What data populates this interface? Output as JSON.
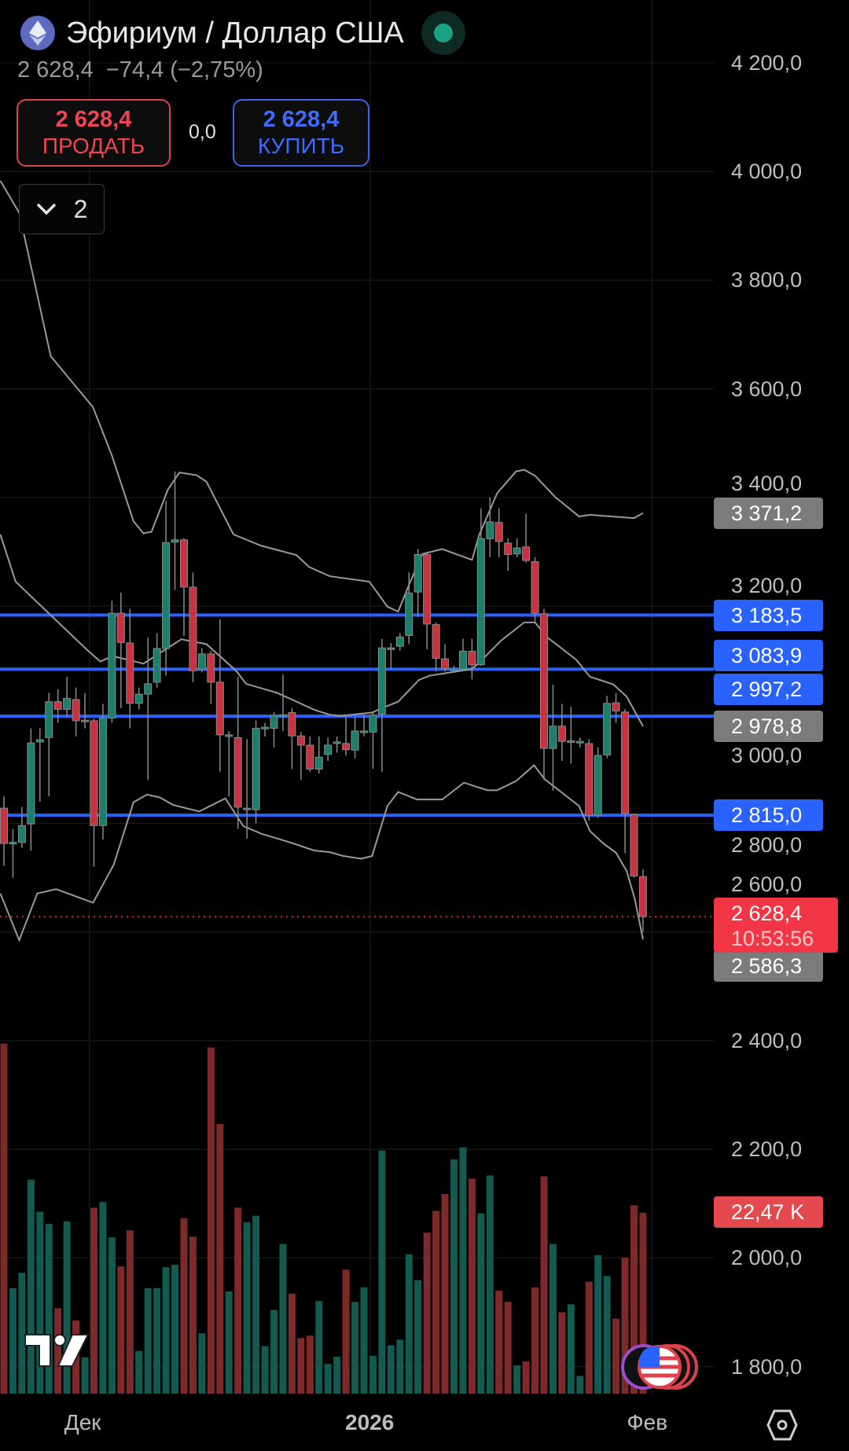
{
  "header": {
    "title": "Эфириум / Доллар США",
    "quote": "2 628,4  −74,4 (−2,75%)",
    "sell": {
      "price": "2 628,4",
      "label": "ПРОДАТЬ"
    },
    "buy": {
      "price": "2 628,4",
      "label": "КУПИТЬ"
    },
    "spread": "0,0",
    "indicators_toggle": {
      "count": "2"
    }
  },
  "colors": {
    "up": "#1b7f6c",
    "down": "#c9323f",
    "vol_up": "#135a50",
    "vol_down": "#7e2a2b",
    "hline": "#2962ff",
    "band": "#9a9a9a",
    "sell": "#f23645",
    "buy": "#2962ff"
  },
  "chart_data": {
    "type": "candlestick",
    "title": "Эфириум / Доллар США",
    "ylim": [
      1800,
      4200
    ],
    "price_axis": [
      "4 200,0",
      "4 000,0",
      "3 800,0",
      "3 600,0",
      "3 400,0",
      "3 200,0",
      "3 000,0",
      "2 800,0",
      "2 600,0",
      "2 400,0",
      "2 200,0",
      "2 000,0",
      "1 800,0"
    ],
    "price_axis_values": [
      4200,
      4000,
      3800,
      3600,
      3400,
      3200,
      3000,
      2800,
      2600,
      2400,
      2200,
      2000,
      1800
    ],
    "time_axis": [
      {
        "label": "Дек",
        "index": 9.5,
        "bold": false
      },
      {
        "label": "2026",
        "index": 40.7,
        "bold": true
      },
      {
        "label": "Фев",
        "index": 72,
        "bold": false
      }
    ],
    "ohlc": [
      [
        2828,
        2850,
        2722,
        2763
      ],
      [
        2765,
        2790,
        2700,
        2765
      ],
      [
        2765,
        2830,
        2755,
        2796
      ],
      [
        2799,
        2975,
        2750,
        2948
      ],
      [
        2950,
        2975,
        2840,
        2954
      ],
      [
        2958,
        3040,
        2850,
        3024
      ],
      [
        3024,
        3047,
        2985,
        3010
      ],
      [
        3010,
        3070,
        2995,
        3030
      ],
      [
        3028,
        3050,
        2960,
        2989
      ],
      [
        2990,
        3040,
        2975,
        2990
      ],
      [
        2989,
        2993,
        2720,
        2796
      ],
      [
        2796,
        3020,
        2770,
        2994
      ],
      [
        2994,
        3210,
        2985,
        3187
      ],
      [
        3187,
        3225,
        3012,
        3133
      ],
      [
        3132,
        3195,
        2975,
        3021
      ],
      [
        3021,
        3050,
        3010,
        3038
      ],
      [
        3038,
        3142,
        2880,
        3057
      ],
      [
        3060,
        3150,
        3050,
        3122
      ],
      [
        3122,
        3394,
        3072,
        3317
      ],
      [
        3318,
        3448,
        3230,
        3322
      ],
      [
        3322,
        3325,
        3145,
        3235
      ],
      [
        3235,
        3262,
        3060,
        3081
      ],
      [
        3083,
        3122,
        3078,
        3112
      ],
      [
        3112,
        3118,
        3020,
        3060
      ],
      [
        3060,
        3176,
        2895,
        2963
      ],
      [
        2963,
        2970,
        2850,
        2963
      ],
      [
        2958,
        3070,
        2790,
        2830
      ],
      [
        2826,
        2955,
        2772,
        2828
      ],
      [
        2825,
        2990,
        2800,
        2975
      ],
      [
        2975,
        2985,
        2960,
        2977
      ],
      [
        2975,
        3005,
        2940,
        2999
      ],
      [
        3000,
        3074,
        2970,
        3000
      ],
      [
        3004,
        3012,
        2900,
        2961
      ],
      [
        2961,
        2968,
        2880,
        2944
      ],
      [
        2944,
        2960,
        2895,
        2900
      ],
      [
        2900,
        2960,
        2892,
        2922
      ],
      [
        2927,
        2958,
        2915,
        2944
      ],
      [
        2950,
        2960,
        2930,
        2950
      ],
      [
        2947,
        2995,
        2925,
        2936
      ],
      [
        2935,
        2995,
        2920,
        2970
      ],
      [
        2970,
        3000,
        2960,
        2970
      ],
      [
        2968,
        3005,
        2900,
        2999
      ],
      [
        3001,
        3140,
        2895,
        3123
      ],
      [
        3122,
        3132,
        3085,
        3123
      ],
      [
        3126,
        3150,
        3118,
        3143
      ],
      [
        3146,
        3262,
        3130,
        3224
      ],
      [
        3226,
        3305,
        3180,
        3295
      ],
      [
        3295,
        3300,
        3120,
        3167
      ],
      [
        3166,
        3170,
        3080,
        3104
      ],
      [
        3103,
        3130,
        3080,
        3085
      ],
      [
        3084,
        3090,
        3080,
        3084
      ],
      [
        3084,
        3140,
        3080,
        3117
      ],
      [
        3117,
        3140,
        3065,
        3092
      ],
      [
        3092,
        3380,
        3090,
        3324
      ],
      [
        3324,
        3400,
        3290,
        3355
      ],
      [
        3354,
        3380,
        3290,
        3319
      ],
      [
        3316,
        3325,
        3265,
        3295
      ],
      [
        3296,
        3325,
        3290,
        3307
      ],
      [
        3309,
        3370,
        3280,
        3284
      ],
      [
        3282,
        3290,
        3170,
        3187
      ],
      [
        3186,
        3195,
        2880,
        2938
      ],
      [
        2938,
        3055,
        2860,
        2979
      ],
      [
        2979,
        3020,
        2915,
        2951
      ],
      [
        2952,
        3015,
        2910,
        2952
      ],
      [
        2951,
        2958,
        2940,
        2951
      ],
      [
        2947,
        2955,
        2805,
        2815
      ],
      [
        2815,
        2940,
        2810,
        2925
      ],
      [
        2926,
        3035,
        2920,
        3021
      ],
      [
        3022,
        3040,
        2985,
        3007
      ],
      [
        3005,
        3010,
        2745,
        2818
      ],
      [
        2816,
        2818,
        2700,
        2703
      ],
      [
        2702,
        2715,
        2600,
        2628.4
      ]
    ],
    "volume_k": [
      43.5,
      13.1,
      15.0,
      26.6,
      22.6,
      21.1,
      10.6,
      21.4,
      9.1,
      4.5,
      23.1,
      23.8,
      19.4,
      15.8,
      20.3,
      5.3,
      13.1,
      13.1,
      15.7,
      16.0,
      21.8,
      19.5,
      7.5,
      43.0,
      33.5,
      12.7,
      23.1,
      21.3,
      22.1,
      5.9,
      10.4,
      18.6,
      12.4,
      6.9,
      7.2,
      11.5,
      3.7,
      4.6,
      15.4,
      11.4,
      13.2,
      4.7,
      30.2,
      6.0,
      6.7,
      17.3,
      14.1,
      20.0,
      22.7,
      24.8,
      29.1,
      30.6,
      26.7,
      22.4,
      27.1,
      12.8,
      11.4,
      3.5,
      4.0,
      13.2,
      27.0,
      18.6,
      10.1,
      11.1,
      2.2,
      13.9,
      17.2,
      14.6,
      9.3,
      16.9,
      23.4,
      22.47
    ],
    "bollinger": {
      "upper": [
        [
          -0.4,
          3983
        ],
        [
          1.7,
          3924
        ],
        [
          5.2,
          3660
        ],
        [
          9.9,
          3566
        ],
        [
          12,
          3477
        ],
        [
          14.4,
          3356
        ],
        [
          15.5,
          3334
        ],
        [
          16.4,
          3337
        ],
        [
          18.2,
          3414
        ],
        [
          19.5,
          3446
        ],
        [
          21.4,
          3441
        ],
        [
          22.5,
          3429
        ],
        [
          25.5,
          3332
        ],
        [
          28.6,
          3311
        ],
        [
          32.5,
          3294
        ],
        [
          33.9,
          3272
        ],
        [
          36.2,
          3255
        ],
        [
          40.6,
          3245
        ],
        [
          42.6,
          3199
        ],
        [
          43.8,
          3190
        ],
        [
          45,
          3239
        ],
        [
          46.5,
          3296
        ],
        [
          48.7,
          3305
        ],
        [
          52,
          3285
        ],
        [
          52.8,
          3331
        ],
        [
          54.8,
          3408
        ],
        [
          56.9,
          3448
        ],
        [
          57.8,
          3451
        ],
        [
          59,
          3440
        ],
        [
          61.3,
          3400
        ],
        [
          63.9,
          3365
        ],
        [
          65.1,
          3368
        ],
        [
          70,
          3362
        ],
        [
          71,
          3371.2
        ]
      ],
      "middle": [
        [
          -0.4,
          3332
        ],
        [
          1.3,
          3245
        ],
        [
          9.2,
          3120
        ],
        [
          10.7,
          3098
        ],
        [
          12.1,
          3108
        ],
        [
          15.5,
          3094
        ],
        [
          19.7,
          3139
        ],
        [
          22.5,
          3130
        ],
        [
          25.8,
          3081
        ],
        [
          26.9,
          3057
        ],
        [
          30.4,
          3040
        ],
        [
          34.5,
          3009
        ],
        [
          36.2,
          3000
        ],
        [
          37.4,
          2998
        ],
        [
          40.9,
          3004
        ],
        [
          42.1,
          3013
        ],
        [
          43.8,
          3024
        ],
        [
          46.1,
          3064
        ],
        [
          47.3,
          3072
        ],
        [
          52,
          3084
        ],
        [
          53.1,
          3101
        ],
        [
          55.2,
          3136
        ],
        [
          57.8,
          3170
        ],
        [
          59,
          3170
        ],
        [
          60.4,
          3142
        ],
        [
          63.6,
          3101
        ],
        [
          65.1,
          3070
        ],
        [
          67.7,
          3056
        ],
        [
          69.2,
          3033
        ],
        [
          71,
          2978.8
        ]
      ],
      "lower": [
        [
          -0.4,
          2671
        ],
        [
          1.7,
          2585
        ],
        [
          3.7,
          2671
        ],
        [
          5.8,
          2679
        ],
        [
          9.9,
          2654
        ],
        [
          12.2,
          2724
        ],
        [
          14.4,
          2839
        ],
        [
          15.9,
          2853
        ],
        [
          17.3,
          2848
        ],
        [
          18.8,
          2834
        ],
        [
          21.7,
          2822
        ],
        [
          24.6,
          2846
        ],
        [
          26.6,
          2795
        ],
        [
          28.6,
          2781
        ],
        [
          31.6,
          2766
        ],
        [
          34.5,
          2750
        ],
        [
          36.2,
          2747
        ],
        [
          37.7,
          2740
        ],
        [
          39.7,
          2735
        ],
        [
          40.9,
          2740
        ],
        [
          42.6,
          2832
        ],
        [
          43.8,
          2858
        ],
        [
          45.9,
          2844
        ],
        [
          48.7,
          2844
        ],
        [
          51.1,
          2875
        ],
        [
          53.7,
          2861
        ],
        [
          54.8,
          2861
        ],
        [
          56.9,
          2878
        ],
        [
          58.9,
          2907
        ],
        [
          60.1,
          2881
        ],
        [
          63.9,
          2832
        ],
        [
          65.1,
          2786
        ],
        [
          66.6,
          2763
        ],
        [
          68,
          2746
        ],
        [
          69.2,
          2712
        ],
        [
          70.1,
          2660
        ],
        [
          71,
          2586.3
        ]
      ]
    },
    "horizontal_lines": [
      3183.5,
      3083.9,
      2997.2,
      2815.0
    ],
    "last_price": 2628.4
  },
  "price_tags": [
    {
      "label": "3 371,2",
      "value": 3371.2,
      "kind": "gray"
    },
    {
      "label": "3 183,5",
      "value": 3183.5,
      "kind": "blue"
    },
    {
      "label": "3 083,9",
      "value": 3083.9,
      "kind": "blue"
    },
    {
      "label": "2 997,2",
      "value": 2997.2,
      "kind": "blue"
    },
    {
      "label": "2 978,8",
      "value": 2978.8,
      "kind": "gray"
    },
    {
      "label": "2 815,0",
      "value": 2815.0,
      "kind": "blue"
    },
    {
      "label": "2 586,3",
      "value": 2586.3,
      "kind": "gray"
    }
  ],
  "last_tag": {
    "price": "2 628,4",
    "countdown": "10:53:56"
  },
  "volume_tag": "22,47 K"
}
